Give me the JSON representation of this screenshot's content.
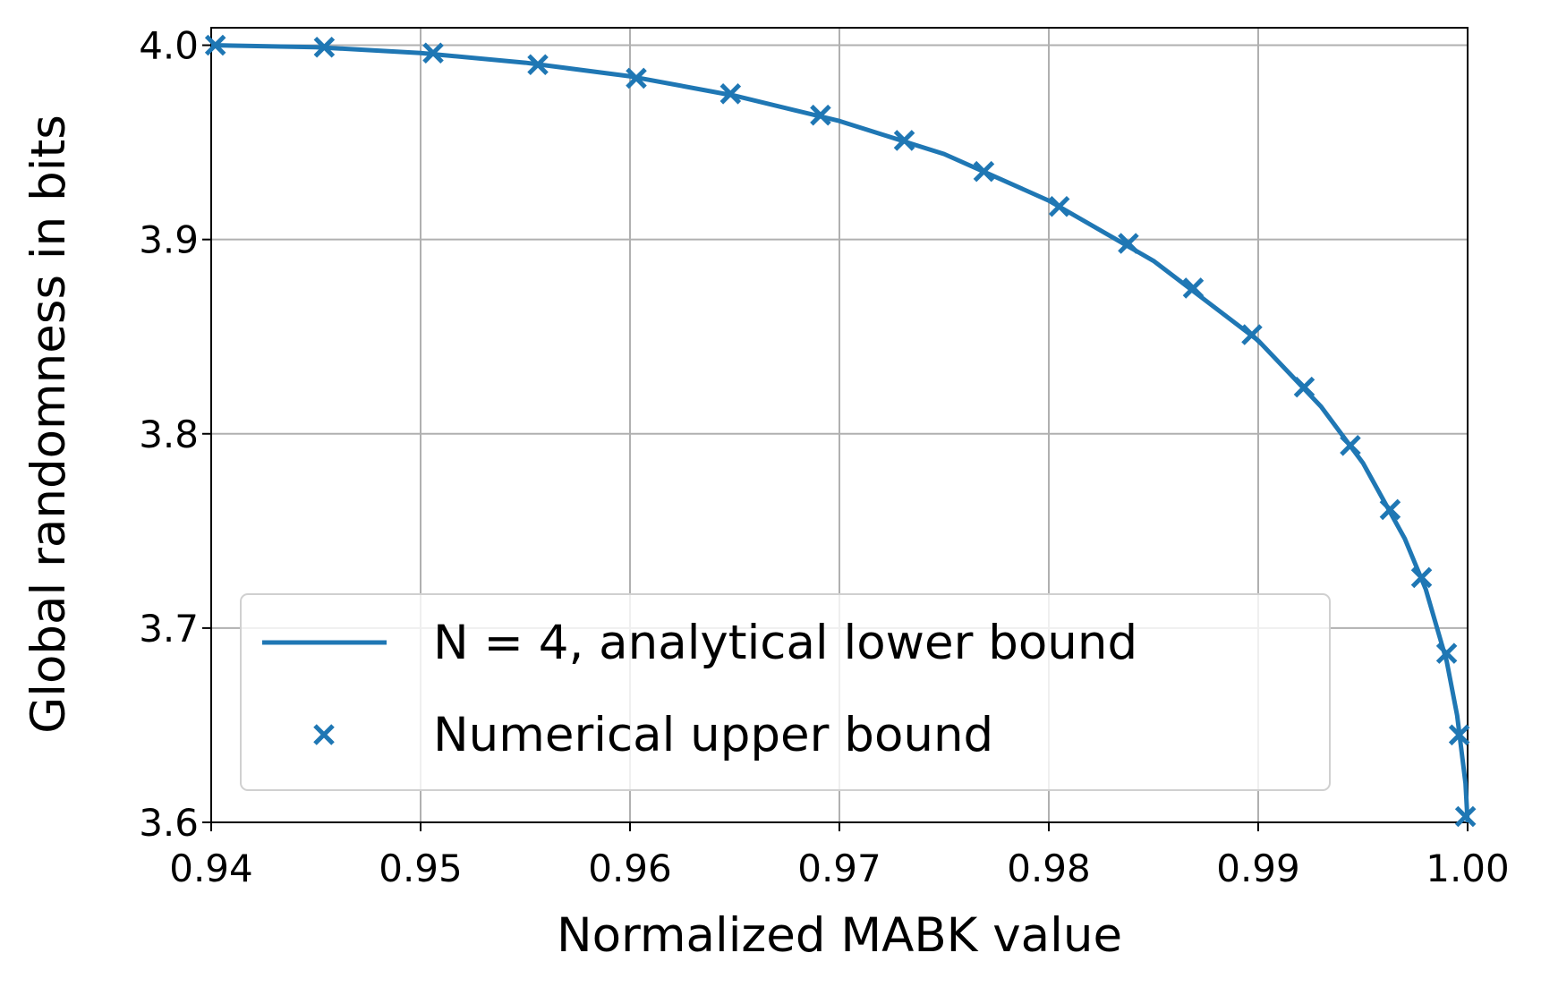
{
  "chart_data": {
    "type": "line",
    "xlabel": "Normalized MABK value",
    "ylabel": "Global randomness in bits",
    "xlim": [
      0.94,
      1.0
    ],
    "ylim": [
      3.6,
      4.009
    ],
    "xticks": [
      0.94,
      0.95,
      0.96,
      0.97,
      0.98,
      0.99,
      {
        "value": 1,
        "label": "1.00"
      }
    ],
    "yticks": [
      3.6,
      3.7,
      3.8,
      3.9,
      {
        "value": 4,
        "label": "4.0"
      }
    ],
    "grid": true,
    "legend": "lower left",
    "series": [
      {
        "name": "N = 4, analytical lower bound",
        "kind": "line",
        "color": "#1f77b4",
        "x": [
          0.94,
          0.945,
          0.95,
          0.955,
          0.96,
          0.965,
          0.97,
          0.975,
          0.98,
          0.985,
          0.99,
          0.993,
          0.995,
          0.997,
          0.998,
          0.999,
          0.9995,
          0.9999,
          1.0
        ],
        "values": [
          4.0,
          3.999,
          3.996,
          3.991,
          3.984,
          3.974,
          3.961,
          3.944,
          3.92,
          3.889,
          3.848,
          3.814,
          3.785,
          3.746,
          3.72,
          3.683,
          3.655,
          3.62,
          3.6
        ]
      },
      {
        "name": "Numerical upper bound",
        "kind": "scatter",
        "color": "#1f77b4",
        "x": [
          0.9402,
          0.9454,
          0.9506,
          0.9556,
          0.9603,
          0.9648,
          0.9691,
          0.9731,
          0.9769,
          0.9805,
          0.9838,
          0.9869,
          0.9897,
          0.9922,
          0.9944,
          0.9963,
          0.9978,
          0.999,
          0.9996,
          0.9999
        ],
        "values": [
          4.0,
          3.999,
          3.996,
          3.99,
          3.983,
          3.975,
          3.964,
          3.951,
          3.935,
          3.917,
          3.898,
          3.875,
          3.851,
          3.824,
          3.794,
          3.761,
          3.726,
          3.687,
          3.645,
          3.603
        ]
      }
    ]
  }
}
